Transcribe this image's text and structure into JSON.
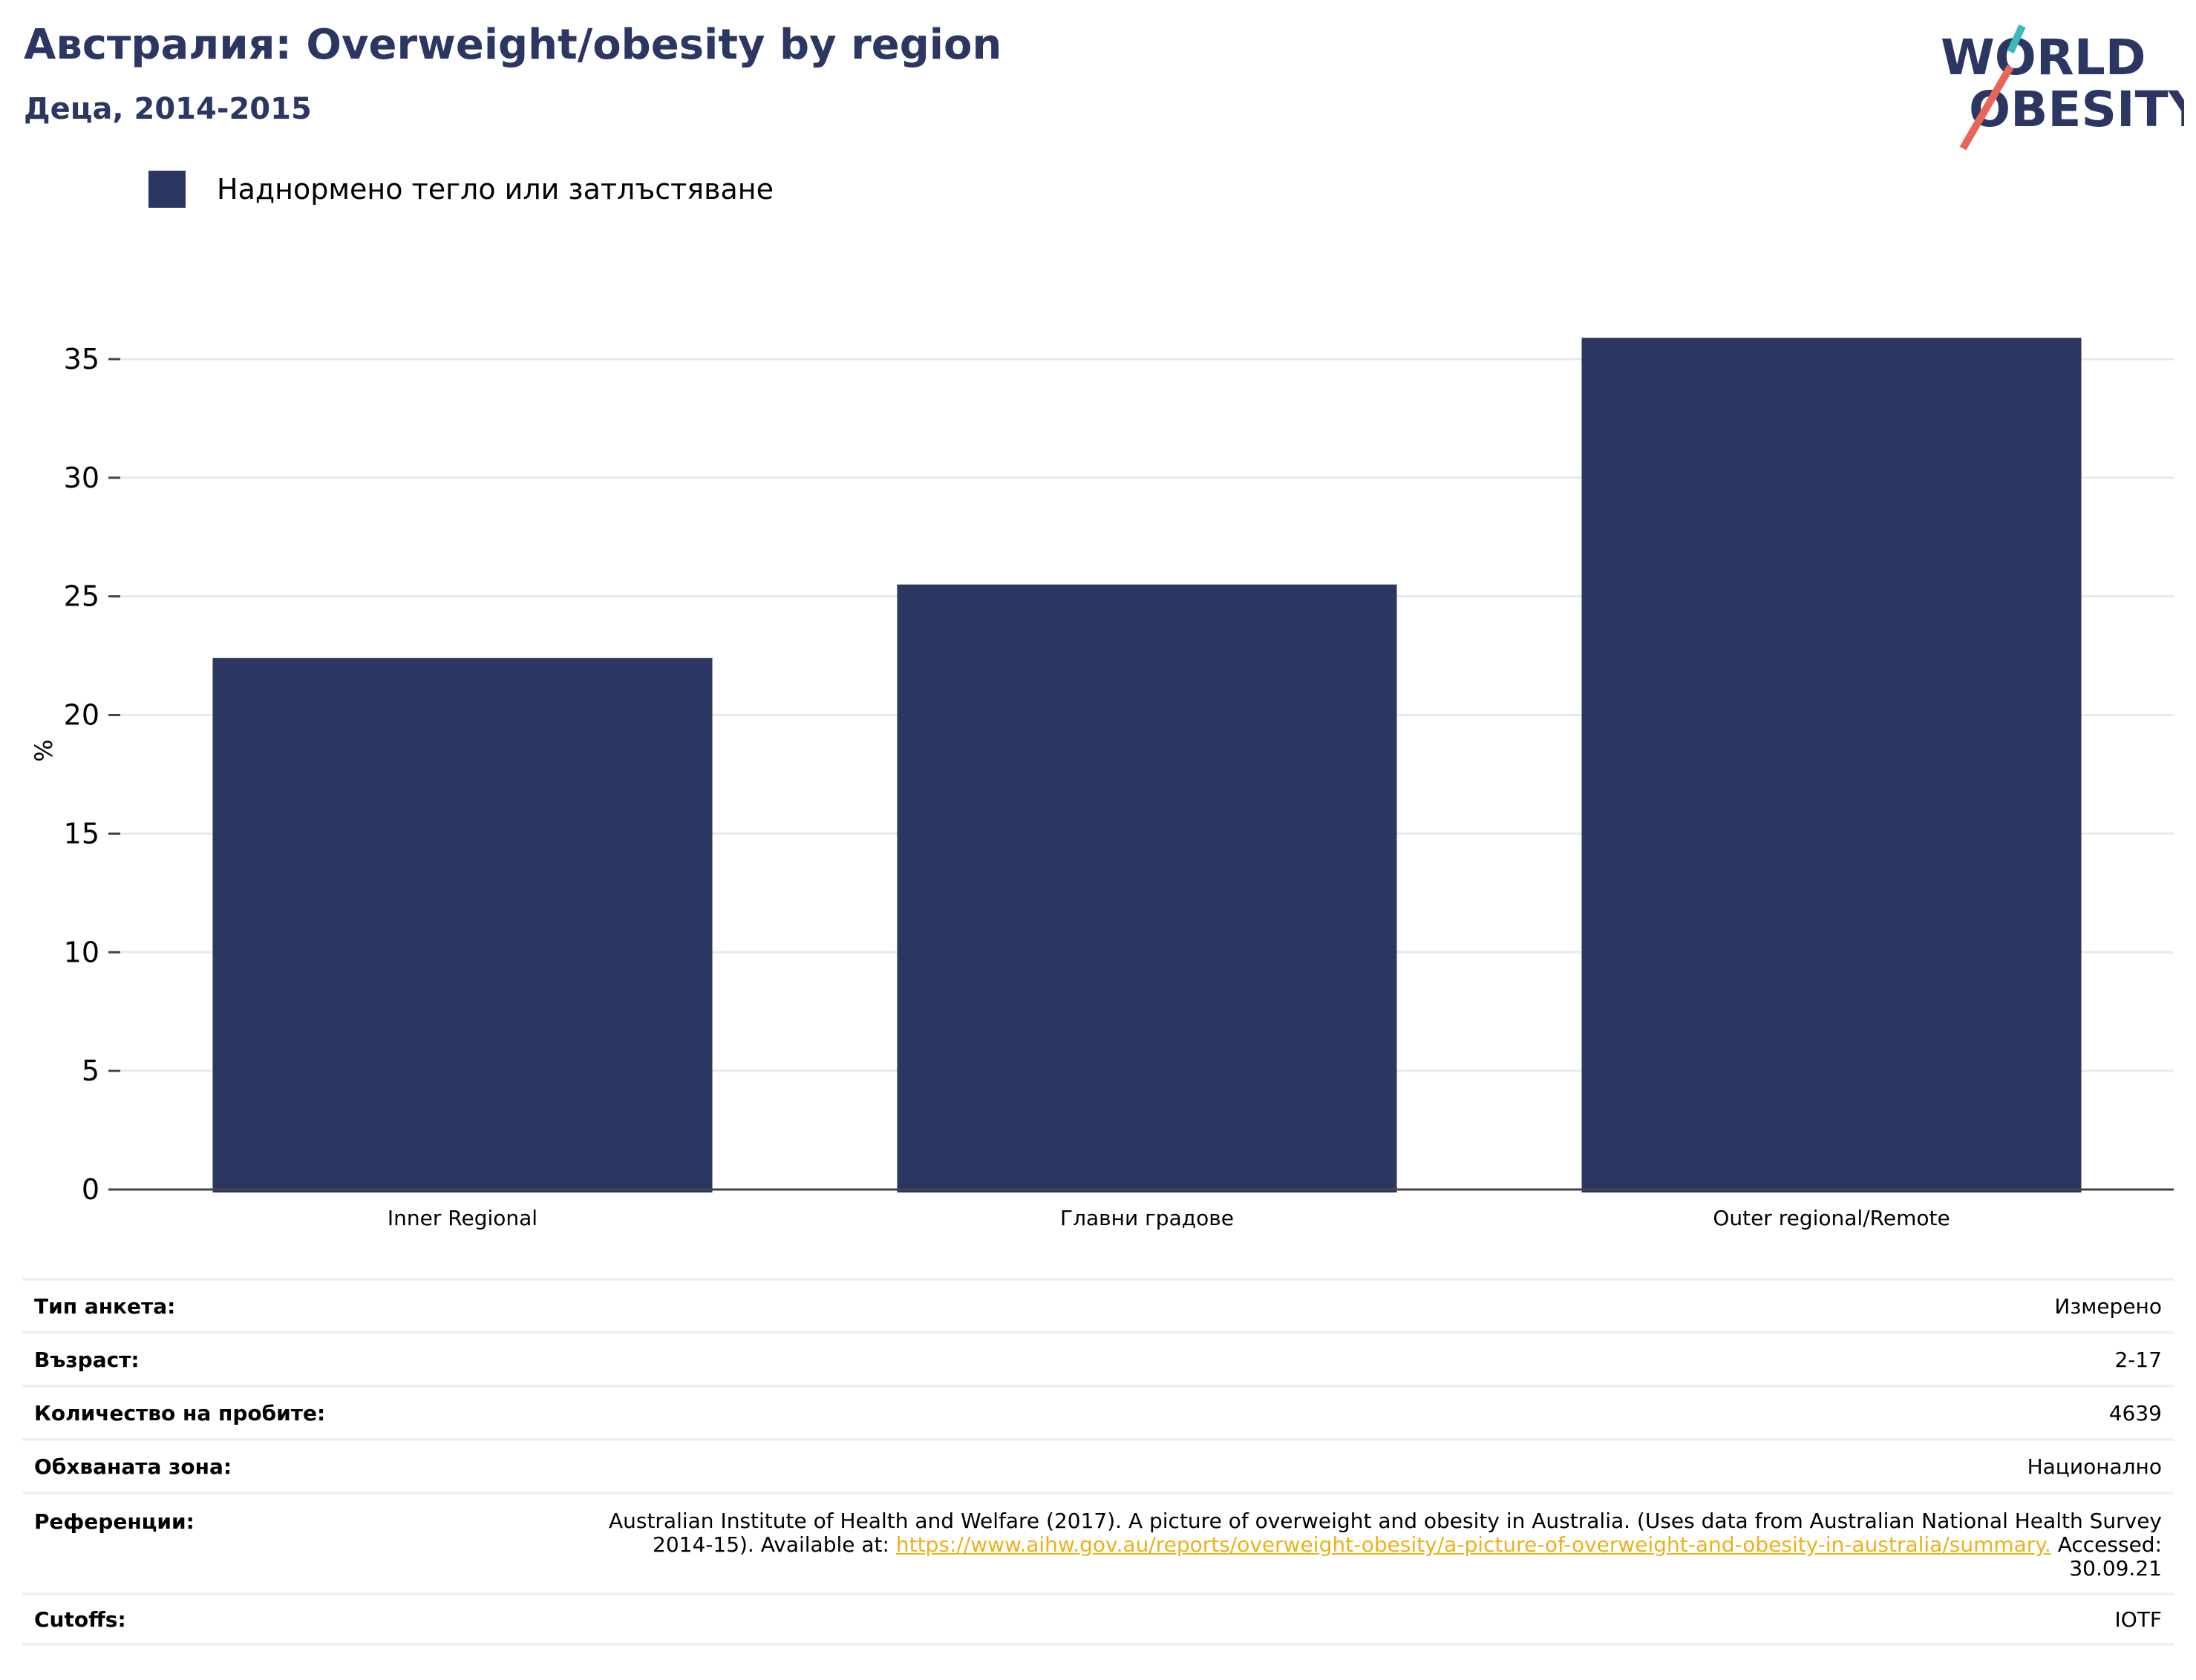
{
  "header": {
    "title": "Австралия: Overweight/obesity by region",
    "subtitle": "Деца, 2014-2015"
  },
  "logo": {
    "line1": "WORLD",
    "line2": "OBESITY",
    "colors": {
      "text": "#2b3762",
      "accent_teal": "#3bbab9",
      "accent_coral": "#e8655a"
    }
  },
  "legend": {
    "label": "Наднормено тегло или затлъстяване",
    "color": "#2b3762"
  },
  "chart_data": {
    "type": "bar",
    "categories": [
      "Inner Regional",
      "Главни градове",
      "Outer regional/Remote"
    ],
    "series": [
      {
        "name": "Наднормено тегло или затлъстяване",
        "values": [
          22.4,
          25.5,
          35.9
        ]
      }
    ],
    "ylabel": "%",
    "xlabel": "",
    "ylim": [
      0,
      37
    ],
    "yticks": [
      0,
      5,
      10,
      15,
      20,
      25,
      30,
      35
    ],
    "grid": true,
    "legend_position": "top-left",
    "bar_color": "#2b3762"
  },
  "meta": {
    "rows": [
      {
        "label": "Тип анкета:",
        "value": "Измерено"
      },
      {
        "label": "Възраст:",
        "value": "2-17"
      },
      {
        "label": "Количество на пробите:",
        "value": "4639"
      },
      {
        "label": "Обхваната зона:",
        "value": "Национално"
      }
    ],
    "reference": {
      "label": "Референции:",
      "text_before": "Australian Institute of Health and Welfare (2017). A picture of overweight and obesity in Australia. (Uses data from Australian National Health Survey 2014-15). Available at: ",
      "link": "https://www.aihw.gov.au/reports/overweight-obesity/a-picture-of-overweight-and-obesity-in-australia/summary.",
      "text_after": " Accessed: 30.09.21"
    },
    "cutoffs": {
      "label": "Cutoffs:",
      "value": "IOTF"
    }
  }
}
